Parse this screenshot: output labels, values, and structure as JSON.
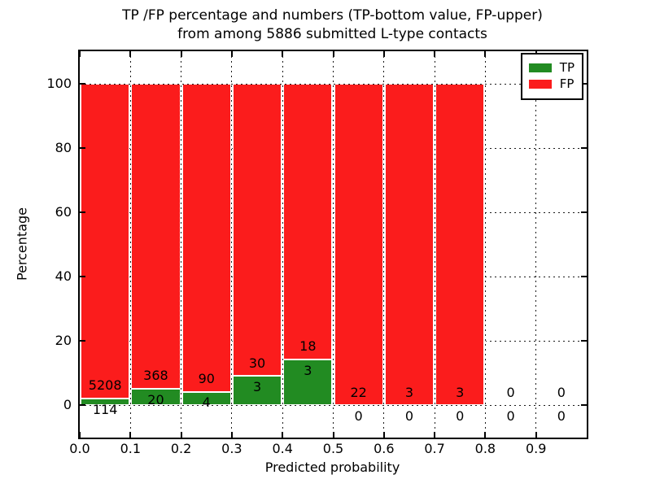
{
  "chart_data": {
    "type": "bar",
    "subtype": "stacked-percentage-histogram",
    "title_line1": "TP /FP percentage and numbers (TP-bottom value, FP-upper)",
    "title_line2": "from among 5886 submitted L-type contacts",
    "xlabel": "Predicted probability",
    "ylabel": "Percentage",
    "total_submitted": 5886,
    "xlim": [
      0.0,
      1.0
    ],
    "ylim": [
      -10,
      110
    ],
    "grid": "dotted, on",
    "x_tick_labels": [
      "0.0",
      "0.1",
      "0.2",
      "0.3",
      "0.4",
      "0.5",
      "0.6",
      "0.7",
      "0.8",
      "0.9"
    ],
    "y_tick_values": [
      0,
      20,
      40,
      60,
      80,
      100
    ],
    "legend": {
      "position": "upper right",
      "items": [
        {
          "label": "TP",
          "color": "#228b22"
        },
        {
          "label": "FP",
          "color": "#fb1c1c"
        }
      ]
    },
    "colors": {
      "tp": "#228b22",
      "fp": "#fb1c1c",
      "grid": "#1a1a1a",
      "frame": "#000000"
    },
    "bins": [
      {
        "range": "0.0-0.1",
        "tp": 114,
        "fp": 5208,
        "tp_pct": 2.14,
        "stack_top_pct": 100
      },
      {
        "range": "0.1-0.2",
        "tp": 20,
        "fp": 368,
        "tp_pct": 5.15,
        "stack_top_pct": 100
      },
      {
        "range": "0.2-0.3",
        "tp": 4,
        "fp": 90,
        "tp_pct": 4.26,
        "stack_top_pct": 100
      },
      {
        "range": "0.3-0.4",
        "tp": 3,
        "fp": 30,
        "tp_pct": 9.09,
        "stack_top_pct": 100
      },
      {
        "range": "0.4-0.5",
        "tp": 3,
        "fp": 18,
        "tp_pct": 14.29,
        "stack_top_pct": 100
      },
      {
        "range": "0.5-0.6",
        "tp": 0,
        "fp": 22,
        "tp_pct": 0,
        "stack_top_pct": 100
      },
      {
        "range": "0.6-0.7",
        "tp": 0,
        "fp": 3,
        "tp_pct": 0,
        "stack_top_pct": 100
      },
      {
        "range": "0.7-0.8",
        "tp": 0,
        "fp": 3,
        "tp_pct": 0,
        "stack_top_pct": 100
      },
      {
        "range": "0.8-0.9",
        "tp": 0,
        "fp": 0,
        "tp_pct": 0,
        "stack_top_pct": 0
      },
      {
        "range": "0.9-1.0",
        "tp": 0,
        "fp": 0,
        "tp_pct": 0,
        "stack_top_pct": 0
      }
    ]
  }
}
